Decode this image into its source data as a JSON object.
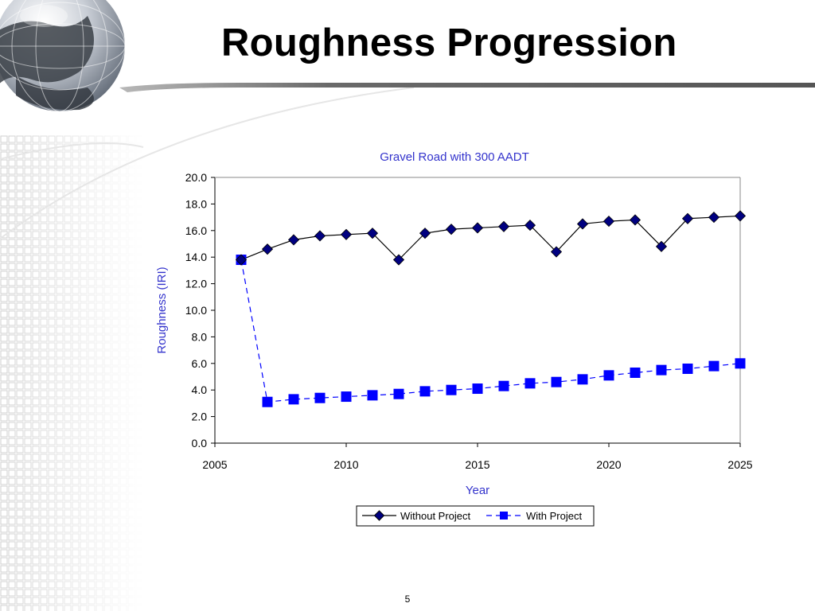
{
  "slide": {
    "title": "Roughness Progression",
    "page_number": "5"
  },
  "colors": {
    "chart_title": "#3333cc",
    "axis_label": "#3333cc",
    "series_without": "#000080",
    "series_with": "#0000ff",
    "axis": "#000000"
  },
  "icons": {
    "logo": "globe-icon"
  },
  "chart_data": {
    "type": "line",
    "title": "Gravel Road with 300 AADT",
    "xlabel": "Year",
    "ylabel": "Roughness (IRI)",
    "xlim": [
      2005,
      2025
    ],
    "ylim": [
      0.0,
      20.0
    ],
    "x_ticks": [
      "2005",
      "2010",
      "2015",
      "2020",
      "2025"
    ],
    "y_ticks": [
      "0.0",
      "2.0",
      "4.0",
      "6.0",
      "8.0",
      "10.0",
      "12.0",
      "14.0",
      "16.0",
      "18.0",
      "20.0"
    ],
    "grid": false,
    "legend_position": "bottom-center",
    "series": [
      {
        "name": "Without Project",
        "marker": "diamond",
        "line": "solid",
        "x": [
          2006,
          2007,
          2008,
          2009,
          2010,
          2011,
          2012,
          2013,
          2014,
          2015,
          2016,
          2017,
          2018,
          2019,
          2020,
          2021,
          2022,
          2023,
          2024,
          2025
        ],
        "y": [
          13.8,
          14.6,
          15.3,
          15.6,
          15.7,
          15.8,
          13.8,
          15.8,
          16.1,
          16.2,
          16.3,
          16.4,
          14.4,
          16.5,
          16.7,
          16.8,
          14.8,
          16.9,
          17.0,
          17.1
        ]
      },
      {
        "name": "With Project",
        "marker": "square",
        "line": "dashed",
        "x": [
          2006,
          2007,
          2008,
          2009,
          2010,
          2011,
          2012,
          2013,
          2014,
          2015,
          2016,
          2017,
          2018,
          2019,
          2020,
          2021,
          2022,
          2023,
          2024,
          2025
        ],
        "y": [
          13.8,
          3.1,
          3.3,
          3.4,
          3.5,
          3.6,
          3.7,
          3.9,
          4.0,
          4.1,
          4.3,
          4.5,
          4.6,
          4.8,
          5.1,
          5.3,
          5.5,
          5.6,
          5.8,
          6.0
        ]
      }
    ]
  }
}
